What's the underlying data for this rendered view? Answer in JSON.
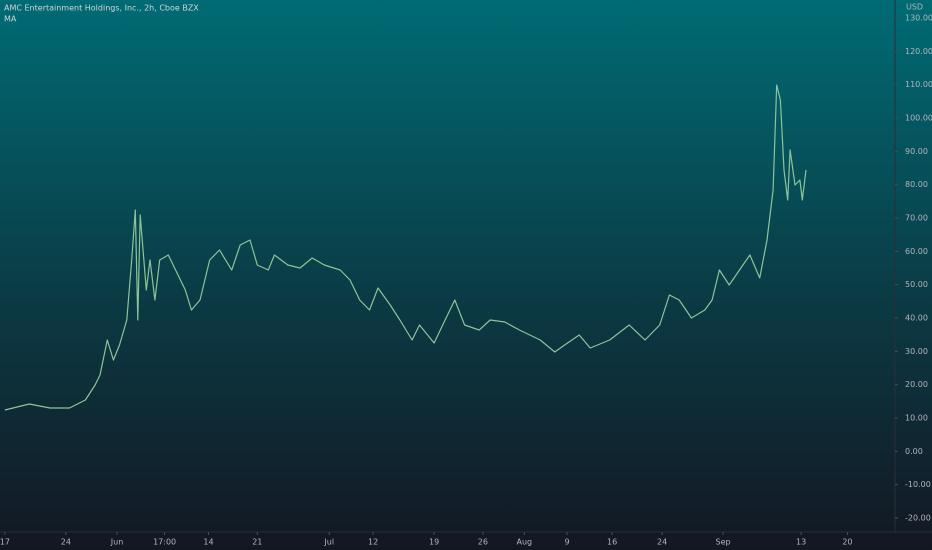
{
  "chart_data": {
    "type": "line",
    "title": "AMC Entertainment Holdings, Inc., 2h, Cboe BZX",
    "subtitle": "MA",
    "y_axis_label": "USD",
    "series": [
      {
        "name": "MA",
        "color": "#8cc49a",
        "x": [
          0.0,
          2.0,
          3.7,
          5.3,
          6.6,
          7.4,
          7.8,
          8.4,
          8.9,
          9.4,
          10.0,
          10.4,
          10.7,
          10.9,
          11.1,
          11.6,
          11.9,
          12.3,
          12.7,
          13.4,
          14.2,
          14.8,
          15.3,
          16.0,
          16.8,
          17.6,
          18.6,
          19.3,
          20.1,
          20.7,
          21.6,
          22.1,
          23.2,
          24.2,
          25.2,
          26.2,
          27.5,
          28.3,
          29.1,
          29.9,
          30.6,
          31.6,
          32.4,
          33.4,
          34.0,
          35.2,
          36.1,
          36.9,
          37.7,
          38.9,
          39.8,
          41.0,
          42.2,
          43.9,
          45.1,
          45.9,
          47.1,
          48.0,
          49.6,
          51.2,
          52.5,
          53.7,
          54.5,
          55.3,
          56.3,
          57.4,
          58.0,
          58.6,
          59.4,
          60.7,
          61.1,
          61.9,
          62.5,
          63.0,
          63.3,
          63.6,
          63.9,
          64.2,
          64.4,
          64.8,
          65.2,
          65.4,
          65.7
        ],
        "values": [
          12.4,
          14.2,
          13,
          13,
          15.4,
          19.9,
          22.9,
          33.4,
          27.4,
          31.9,
          39.4,
          57.4,
          72.4,
          39.4,
          70.9,
          48.4,
          57.4,
          45.4,
          57.4,
          58.9,
          52.9,
          48.4,
          42.4,
          45.4,
          57.4,
          60.4,
          54.4,
          61.9,
          63.4,
          55.9,
          54.4,
          58.9,
          55.9,
          55,
          58,
          55.9,
          54.4,
          51.4,
          45.4,
          42.4,
          49,
          43.9,
          39.4,
          33.4,
          37.9,
          32.5,
          39.4,
          45.4,
          37.9,
          36.4,
          39.4,
          38.8,
          36.4,
          33.4,
          29.8,
          31.9,
          34.9,
          31,
          33.4,
          37.9,
          33.4,
          37.9,
          46.9,
          45.4,
          40,
          42.4,
          45.4,
          54.4,
          49.9,
          56.8,
          58.9,
          52,
          63.4,
          78.4,
          109.9,
          105.4,
          84.4,
          75.4,
          90.4,
          79.9,
          81.4,
          75.4,
          84.4
        ]
      }
    ],
    "xlim": [
      -0.4,
      73
    ],
    "xticks": [
      {
        "value": 0,
        "label": "17"
      },
      {
        "value": 5,
        "label": "24"
      },
      {
        "value": 9.2,
        "label": "Jun"
      },
      {
        "value": 13.1,
        "label": "17:00"
      },
      {
        "value": 16.7,
        "label": "14"
      },
      {
        "value": 20.7,
        "label": "21"
      },
      {
        "value": 26.6,
        "label": "Jul"
      },
      {
        "value": 30.2,
        "label": "12"
      },
      {
        "value": 35.2,
        "label": "19"
      },
      {
        "value": 39.2,
        "label": "26"
      },
      {
        "value": 42.6,
        "label": "Aug"
      },
      {
        "value": 46.1,
        "label": "9"
      },
      {
        "value": 49.8,
        "label": "16"
      },
      {
        "value": 53.9,
        "label": "24"
      },
      {
        "value": 58.9,
        "label": "Sep"
      },
      {
        "value": 65.3,
        "label": "13"
      },
      {
        "value": 69.1,
        "label": "20"
      }
    ],
    "ylim": [
      -24.2,
      135.4
    ],
    "yticks": [
      {
        "value": 130,
        "label": "130.00"
      },
      {
        "value": 120,
        "label": "120.00"
      },
      {
        "value": 110,
        "label": "110.00"
      },
      {
        "value": 100,
        "label": "100.00"
      },
      {
        "value": 90,
        "label": "90.00"
      },
      {
        "value": 80,
        "label": "80.00"
      },
      {
        "value": 70,
        "label": "70.00"
      },
      {
        "value": 60,
        "label": "60.00"
      },
      {
        "value": 50,
        "label": "50.00"
      },
      {
        "value": 40,
        "label": "40.00"
      },
      {
        "value": 30,
        "label": "30.00"
      },
      {
        "value": 20,
        "label": "20.00"
      },
      {
        "value": 10,
        "label": "10.00"
      },
      {
        "value": 0,
        "label": "0.00"
      },
      {
        "value": -10,
        "label": "-10.00"
      },
      {
        "value": -20,
        "label": "-20.00"
      }
    ],
    "grid": false
  }
}
